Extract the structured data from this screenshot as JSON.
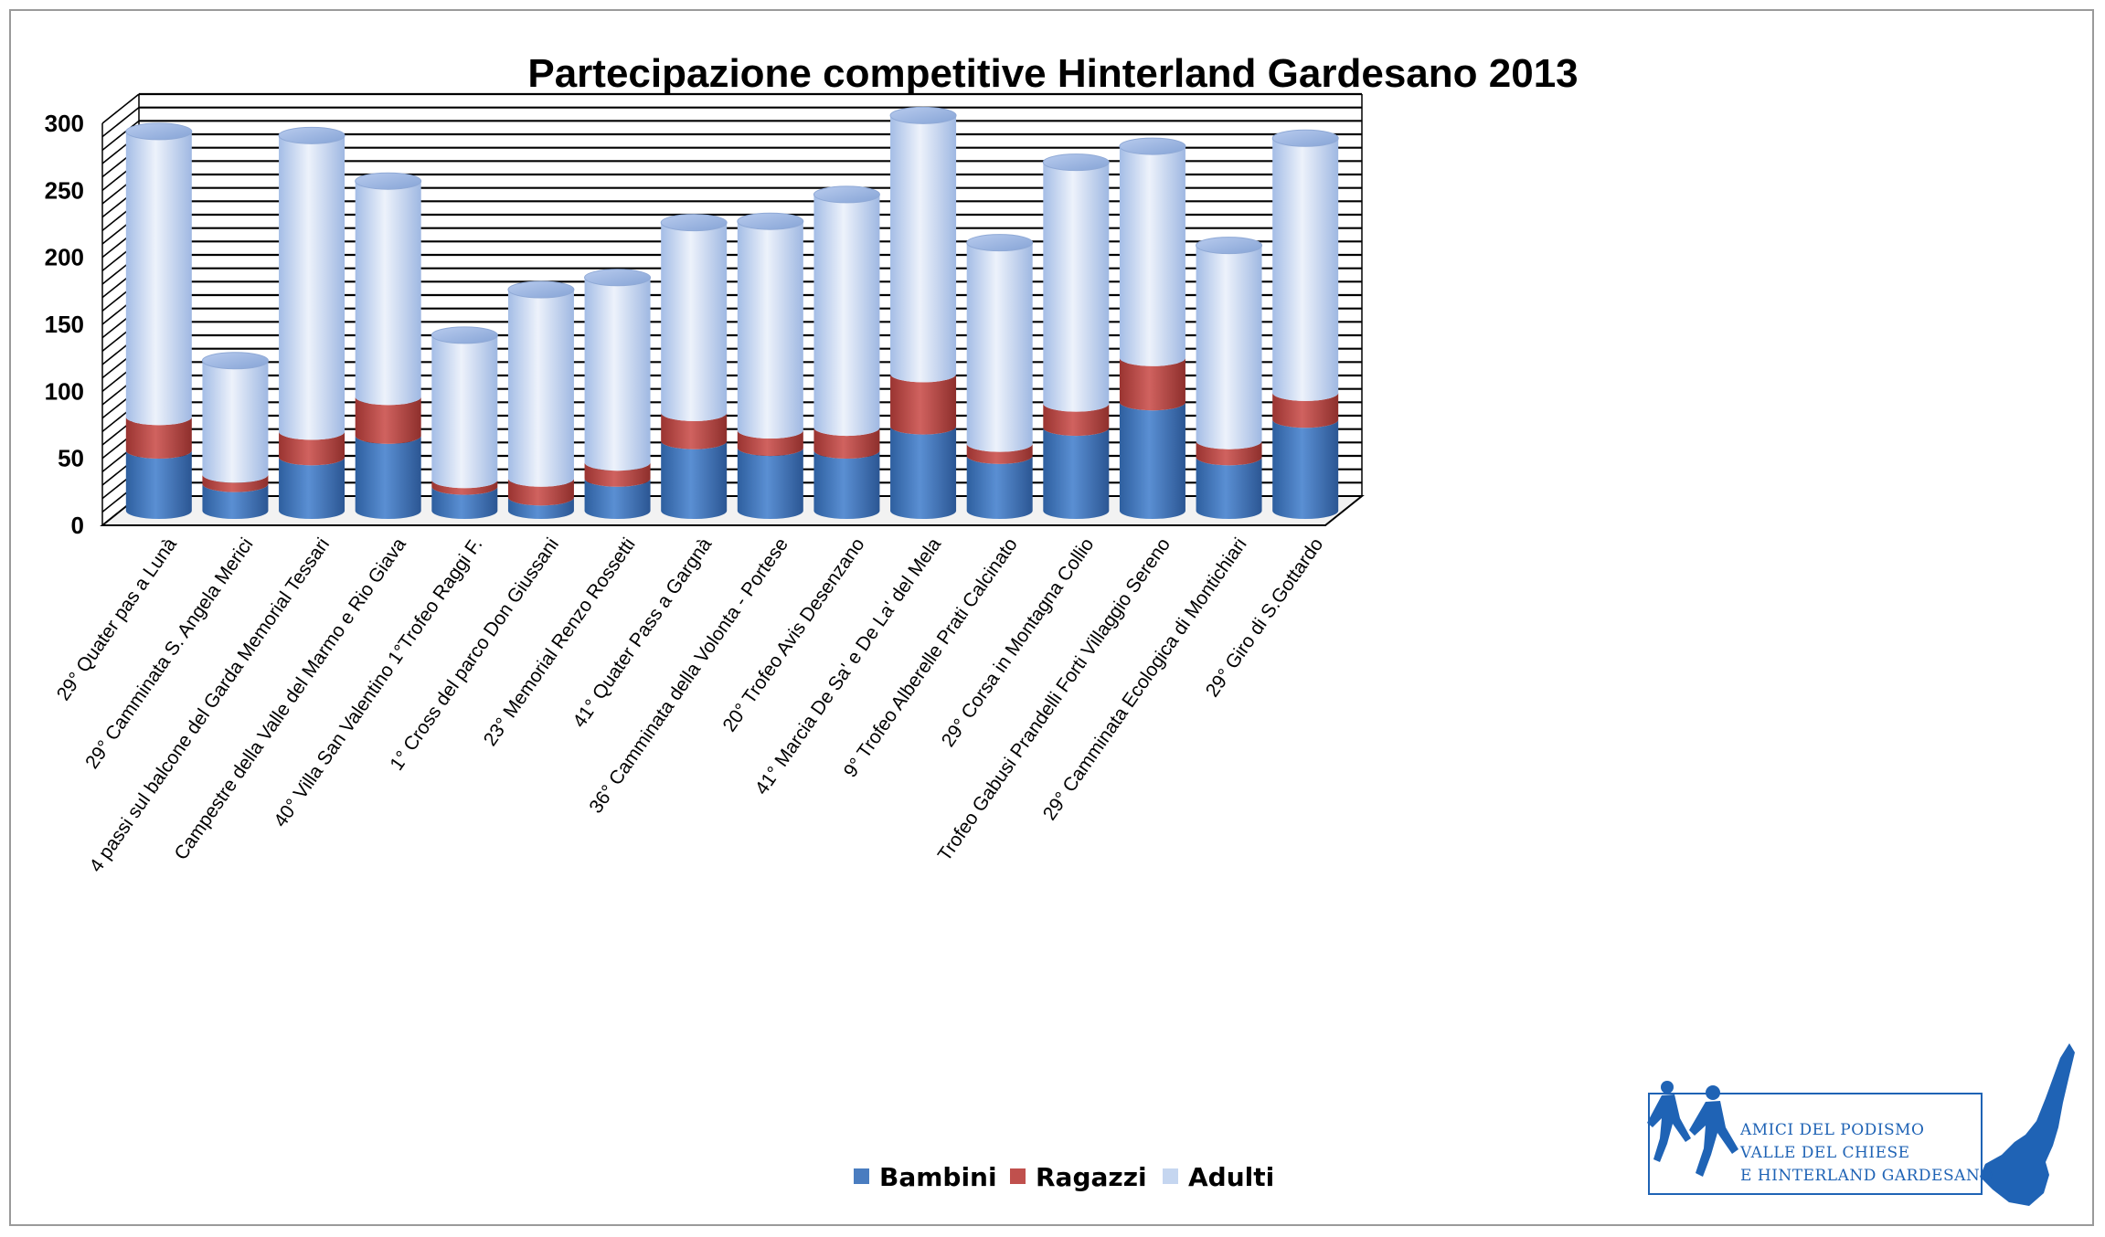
{
  "chart_data": {
    "type": "bar",
    "stacked": true,
    "style": "3d-cylinder",
    "title": "Partecipazione competitive Hinterland Gardesano 2013",
    "xlabel": "",
    "ylabel": "",
    "ylim": [
      0,
      300
    ],
    "yticks": [
      0,
      50,
      100,
      150,
      200,
      250,
      300
    ],
    "grid": true,
    "legend_position": "bottom",
    "categories": [
      "29° Quater pas a Lunà",
      "29° Camminata S. Angela Merici",
      "4 passi sul balcone del Garda Memorial Tessari",
      "Campestre della Valle del Marmo e Rio Giava",
      "40° Villa San Valentino 1°Trofeo Raggi F.",
      "1° Cross del parco Don Giussani",
      "23° Memorial Renzo Rossetti",
      "41° Quater Pass a Gargnà",
      "36° Camminata della Volonta - Portese",
      "20° Trofeo Avis Desenzano",
      "41° Marcia De Sa' e De La' del Mela",
      "9° Trofeo Alberelle Prati Calcinato",
      "29° Corsa in Montagna Collio",
      "Trofeo Gabusi Prandelli Forti Villaggio Sereno",
      "29° Camminata Ecologica di Montichiari",
      "29° Giro di S.Gottardo"
    ],
    "series": [
      {
        "name": "Bambini",
        "color": "#4a7dc0",
        "values": [
          45,
          20,
          40,
          56,
          18,
          10,
          24,
          52,
          47,
          45,
          63,
          41,
          62,
          81,
          40,
          68
        ]
      },
      {
        "name": "Ragazzi",
        "color": "#c0504d",
        "values": [
          25,
          7,
          19,
          29,
          5,
          14,
          12,
          21,
          13,
          17,
          39,
          9,
          18,
          33,
          12,
          20
        ]
      },
      {
        "name": "Adulti",
        "color": "#c5d6f0",
        "values": [
          213,
          85,
          221,
          161,
          108,
          141,
          138,
          142,
          156,
          174,
          193,
          150,
          180,
          158,
          146,
          190
        ]
      }
    ]
  },
  "logo": {
    "line1": "AMICI DEL PODISMO",
    "line2": "VALLE DEL CHIESE",
    "line3": "E HINTERLAND GARDESANO"
  }
}
